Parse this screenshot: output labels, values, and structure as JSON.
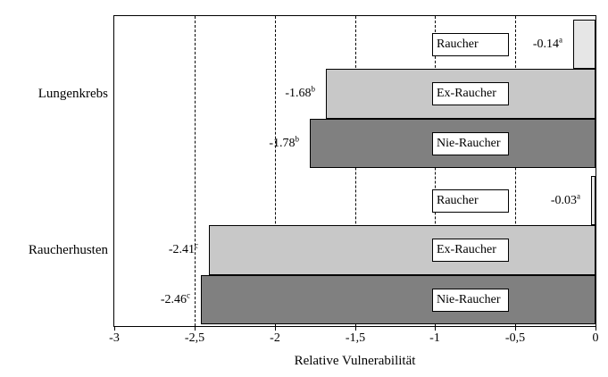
{
  "chart_data": {
    "type": "bar",
    "orientation": "horizontal",
    "title": "",
    "xlabel": "Relative Vulnerabilität",
    "ylabel": "",
    "xlim": [
      -3,
      0
    ],
    "grid": {
      "vertical_dashed_at": [
        -2.5,
        -2,
        -1.5,
        -1,
        -0.5
      ]
    },
    "legend": "series labels shown in white boxes inside bars",
    "x_ticks": [
      {
        "value": -3,
        "label": "-3"
      },
      {
        "value": -2.5,
        "label": "-2,5"
      },
      {
        "value": -2,
        "label": "-2"
      },
      {
        "value": -1.5,
        "label": "-1,5"
      },
      {
        "value": -1,
        "label": "-1"
      },
      {
        "value": -0.5,
        "label": "-0,5"
      },
      {
        "value": 0,
        "label": "0"
      }
    ],
    "groups": [
      {
        "category": "Lungenkrebs",
        "bars": [
          {
            "series": "Raucher",
            "value": -0.14,
            "label": "-0.14",
            "superscript": "a",
            "color": "#e6e6e6"
          },
          {
            "series": "Ex-Raucher",
            "value": -1.68,
            "label": "-1.68",
            "superscript": "b",
            "color": "#c8c8c8"
          },
          {
            "series": "Nie-Raucher",
            "value": -1.78,
            "label": "-1.78",
            "superscript": "b",
            "color": "#808080"
          }
        ]
      },
      {
        "category": "Raucherhusten",
        "bars": [
          {
            "series": "Raucher",
            "value": -0.03,
            "label": "-0.03",
            "superscript": "a",
            "color": "#e6e6e6"
          },
          {
            "series": "Ex-Raucher",
            "value": -2.41,
            "label": "-2.41",
            "superscript": "c",
            "color": "#c8c8c8"
          },
          {
            "series": "Nie-Raucher",
            "value": -2.46,
            "label": "-2.46",
            "superscript": "c",
            "color": "#808080"
          }
        ]
      }
    ],
    "colors": {
      "raucher_bar": "#e6e6e6",
      "ex_raucher_bar": "#c8c8c8",
      "nie_raucher_bar": "#808080",
      "axis_and_text": "#000000",
      "background": "#ffffff"
    }
  }
}
